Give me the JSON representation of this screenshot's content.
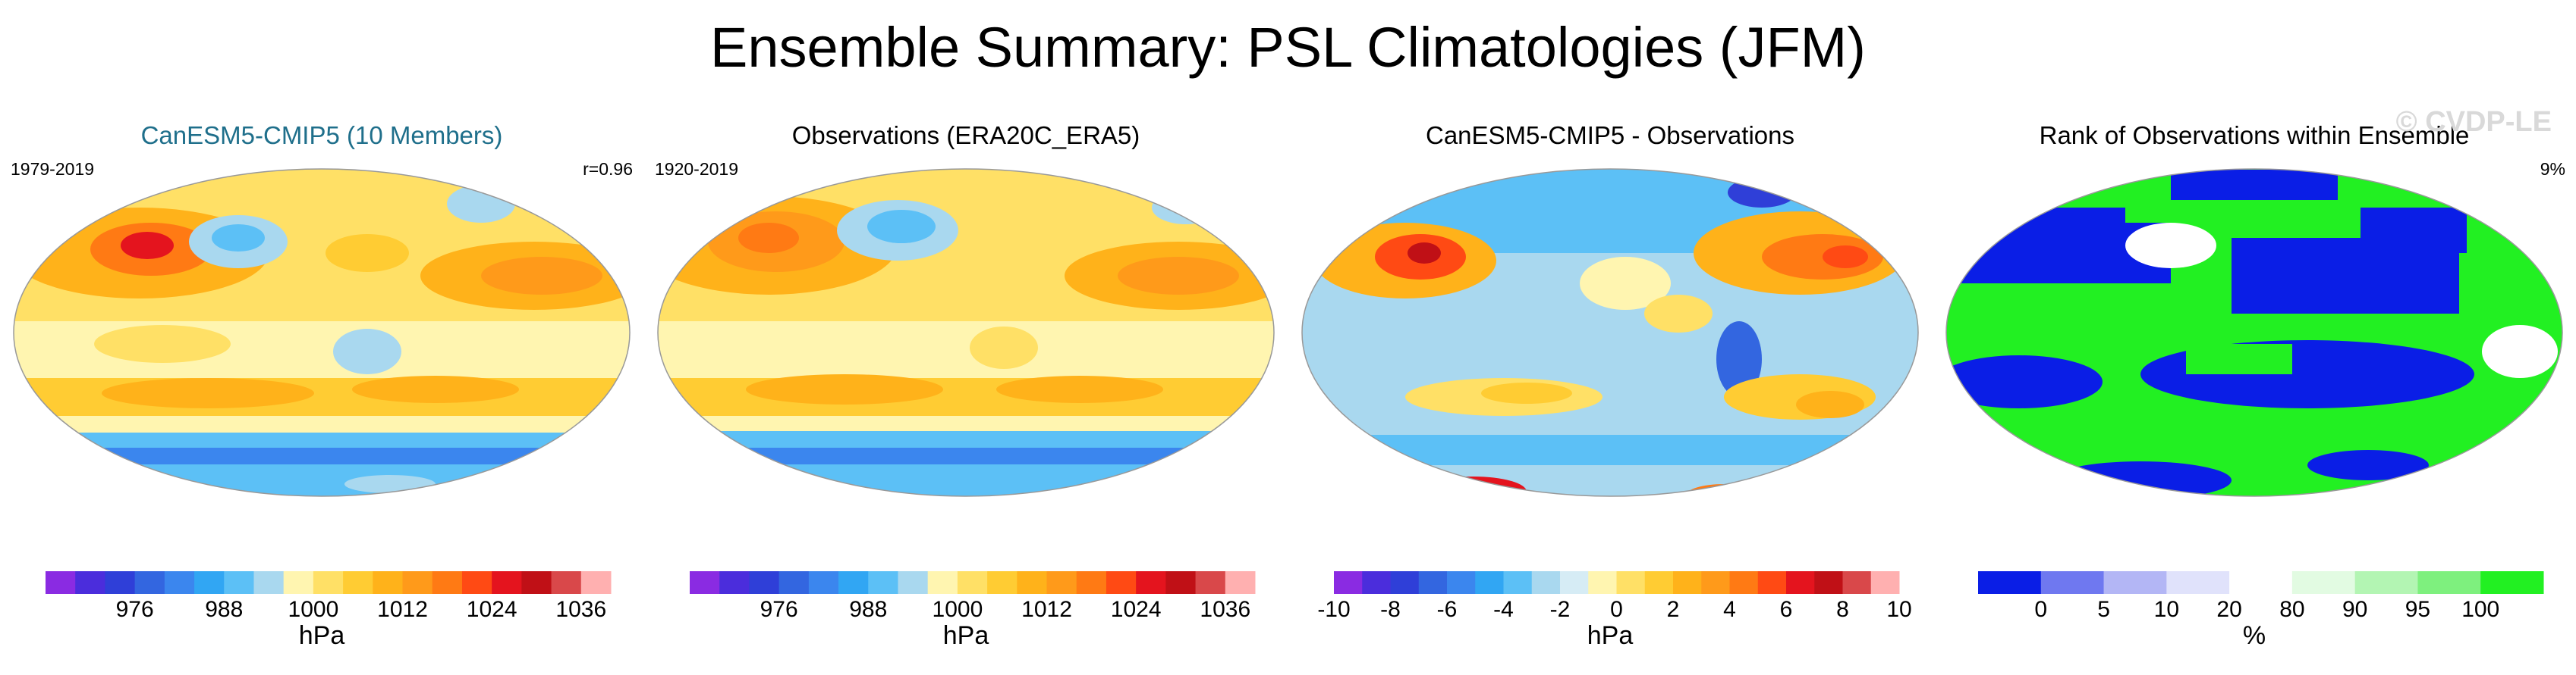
{
  "title": "Ensemble Summary: PSL Climatologies (JFM)",
  "watermark": "© CVDP-LE",
  "panels": [
    {
      "title": "CanESM5-CMIP5 (10 Members)",
      "title_color": "#1f6f8b",
      "left_label": "1979-2019",
      "right_label": "r=0.96",
      "unit": "hPa",
      "colors": [
        "#8a2be2",
        "#4b2ddc",
        "#2f3fd8",
        "#3366e0",
        "#3b86ee",
        "#31a6f3",
        "#5cc0f6",
        "#a9d8ef",
        "#fff5b0",
        "#ffe066",
        "#ffcc33",
        "#ffb21a",
        "#ff9a1a",
        "#ff7a14",
        "#ff4a14",
        "#e4141e",
        "#c01016",
        "#d9484a",
        "#ffb0b0"
      ],
      "ticks": [
        "976",
        "988",
        "1000",
        "1012",
        "1024",
        "1036"
      ],
      "tick_positions": [
        3,
        6,
        9,
        12,
        15,
        18
      ]
    },
    {
      "title": "Observations (ERA20C_ERA5)",
      "title_color": "#000000",
      "left_label": "1920-2019",
      "right_label": "",
      "unit": "hPa",
      "colors": [
        "#8a2be2",
        "#4b2ddc",
        "#2f3fd8",
        "#3366e0",
        "#3b86ee",
        "#31a6f3",
        "#5cc0f6",
        "#a9d8ef",
        "#fff5b0",
        "#ffe066",
        "#ffcc33",
        "#ffb21a",
        "#ff9a1a",
        "#ff7a14",
        "#ff4a14",
        "#e4141e",
        "#c01016",
        "#d9484a",
        "#ffb0b0"
      ],
      "ticks": [
        "976",
        "988",
        "1000",
        "1012",
        "1024",
        "1036"
      ],
      "tick_positions": [
        3,
        6,
        9,
        12,
        15,
        18
      ]
    },
    {
      "title": "CanESM5-CMIP5 - Observations",
      "title_color": "#000000",
      "left_label": "",
      "right_label": "",
      "unit": "hPa",
      "colors": [
        "#8a2be2",
        "#4b2ddc",
        "#2f3fd8",
        "#3366e0",
        "#3b86ee",
        "#31a6f3",
        "#5cc0f6",
        "#a9d8ef",
        "#d6ecf5",
        "#fff5b0",
        "#ffe066",
        "#ffcc33",
        "#ffb21a",
        "#ff9a1a",
        "#ff7a14",
        "#ff4a14",
        "#e4141e",
        "#c01016",
        "#d9484a",
        "#ffb0b0"
      ],
      "ticks": [
        "-10",
        "-8",
        "-6",
        "-4",
        "-2",
        "0",
        "2",
        "4",
        "6",
        "8",
        "10"
      ],
      "tick_positions": [
        0,
        2,
        4,
        6,
        8,
        10,
        12,
        14,
        16,
        18,
        20
      ]
    },
    {
      "title": "Rank of Observations within Ensemble",
      "title_color": "#000000",
      "left_label": "",
      "right_label": "9%",
      "unit": "%",
      "colors": [
        "#0a1ee6",
        "#6f78f0",
        "#b3b6f5",
        "#e0e2fb",
        "#ffffff",
        "#e2fbe2",
        "#b3f5b3",
        "#7ef07e",
        "#22f022"
      ],
      "ticks": [
        "0",
        "5",
        "10",
        "20",
        "80",
        "90",
        "95",
        "100"
      ],
      "tick_positions": [
        1,
        2,
        3,
        4,
        5,
        6,
        7,
        8
      ]
    }
  ]
}
